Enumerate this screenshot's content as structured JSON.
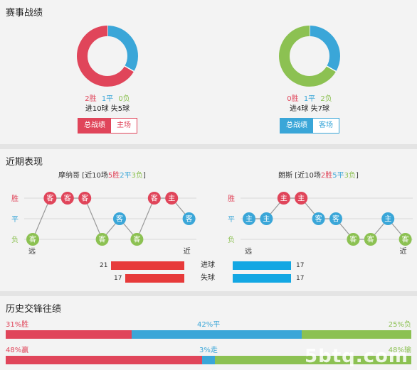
{
  "match_record": {
    "title": "赛事战绩",
    "home": {
      "wins": "2胜",
      "draws": "1平",
      "losses": "0负",
      "goals": "进10球 失5球",
      "tabs": [
        "总战绩",
        "主场"
      ],
      "donut": {
        "win": 2,
        "draw": 1,
        "loss": 0
      }
    },
    "away": {
      "wins": "0胜",
      "draws": "1平",
      "losses": "2负",
      "goals": "进4球 失7球",
      "tabs": [
        "总战绩",
        "客场"
      ],
      "donut": {
        "win": 0,
        "draw": 1,
        "loss": 2
      }
    }
  },
  "recent_form": {
    "title": "近期表现",
    "row_labels": {
      "win": "胜",
      "draw": "平",
      "loss": "负"
    },
    "far_label": "远",
    "near_label": "近",
    "home": {
      "name": "摩纳哥",
      "summary_prefix": "[近10场",
      "wins": "5胜",
      "draws": "2平",
      "losses": "3负",
      "summary_suffix": "]",
      "results": [
        "L",
        "W",
        "W",
        "W",
        "L",
        "D",
        "L",
        "W",
        "W",
        "D"
      ],
      "venues": [
        "客",
        "客",
        "客",
        "客",
        "客",
        "客",
        "客",
        "客",
        "主",
        "客"
      ]
    },
    "away": {
      "name": "朗斯",
      "summary_prefix": "[近10场",
      "wins": "2胜",
      "draws": "5平",
      "losses": "3负",
      "summary_suffix": "]",
      "results": [
        "D",
        "D",
        "W",
        "W",
        "D",
        "D",
        "L",
        "L",
        "D",
        "L"
      ],
      "venues": [
        "主",
        "主",
        "主",
        "主",
        "客",
        "客",
        "客",
        "客",
        "主",
        "客"
      ]
    },
    "stats": {
      "goals_label": "进球",
      "conceded_label": "失球",
      "home_goals": 21,
      "home_conceded": 17,
      "away_goals": 17,
      "away_conceded": 17
    }
  },
  "head_to_head": {
    "title": "历史交锋往绩",
    "row1": {
      "left": "31%胜",
      "mid": "42%平",
      "right": "25%负",
      "values": [
        31,
        42,
        25
      ]
    },
    "row2": {
      "left": "48%赢",
      "mid": "3%走",
      "right": "48%输",
      "values": [
        48,
        3,
        48
      ]
    }
  },
  "watermark": "5btq.com",
  "colors": {
    "win": "#e0455a",
    "draw": "#3aa6d8",
    "loss": "#8cc152"
  }
}
